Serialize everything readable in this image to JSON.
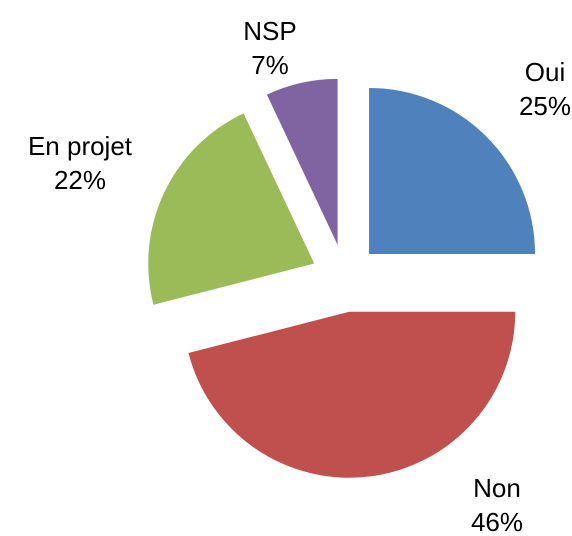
{
  "chart_data": {
    "type": "pie",
    "categories": [
      "Oui",
      "Non",
      "En projet",
      "NSP"
    ],
    "values": [
      25,
      46,
      22,
      7
    ],
    "value_labels": [
      "25%",
      "46%",
      "22%",
      "7%"
    ],
    "colors": [
      "#4f81bd",
      "#c0504d",
      "#9bbb59",
      "#8064a2"
    ]
  }
}
